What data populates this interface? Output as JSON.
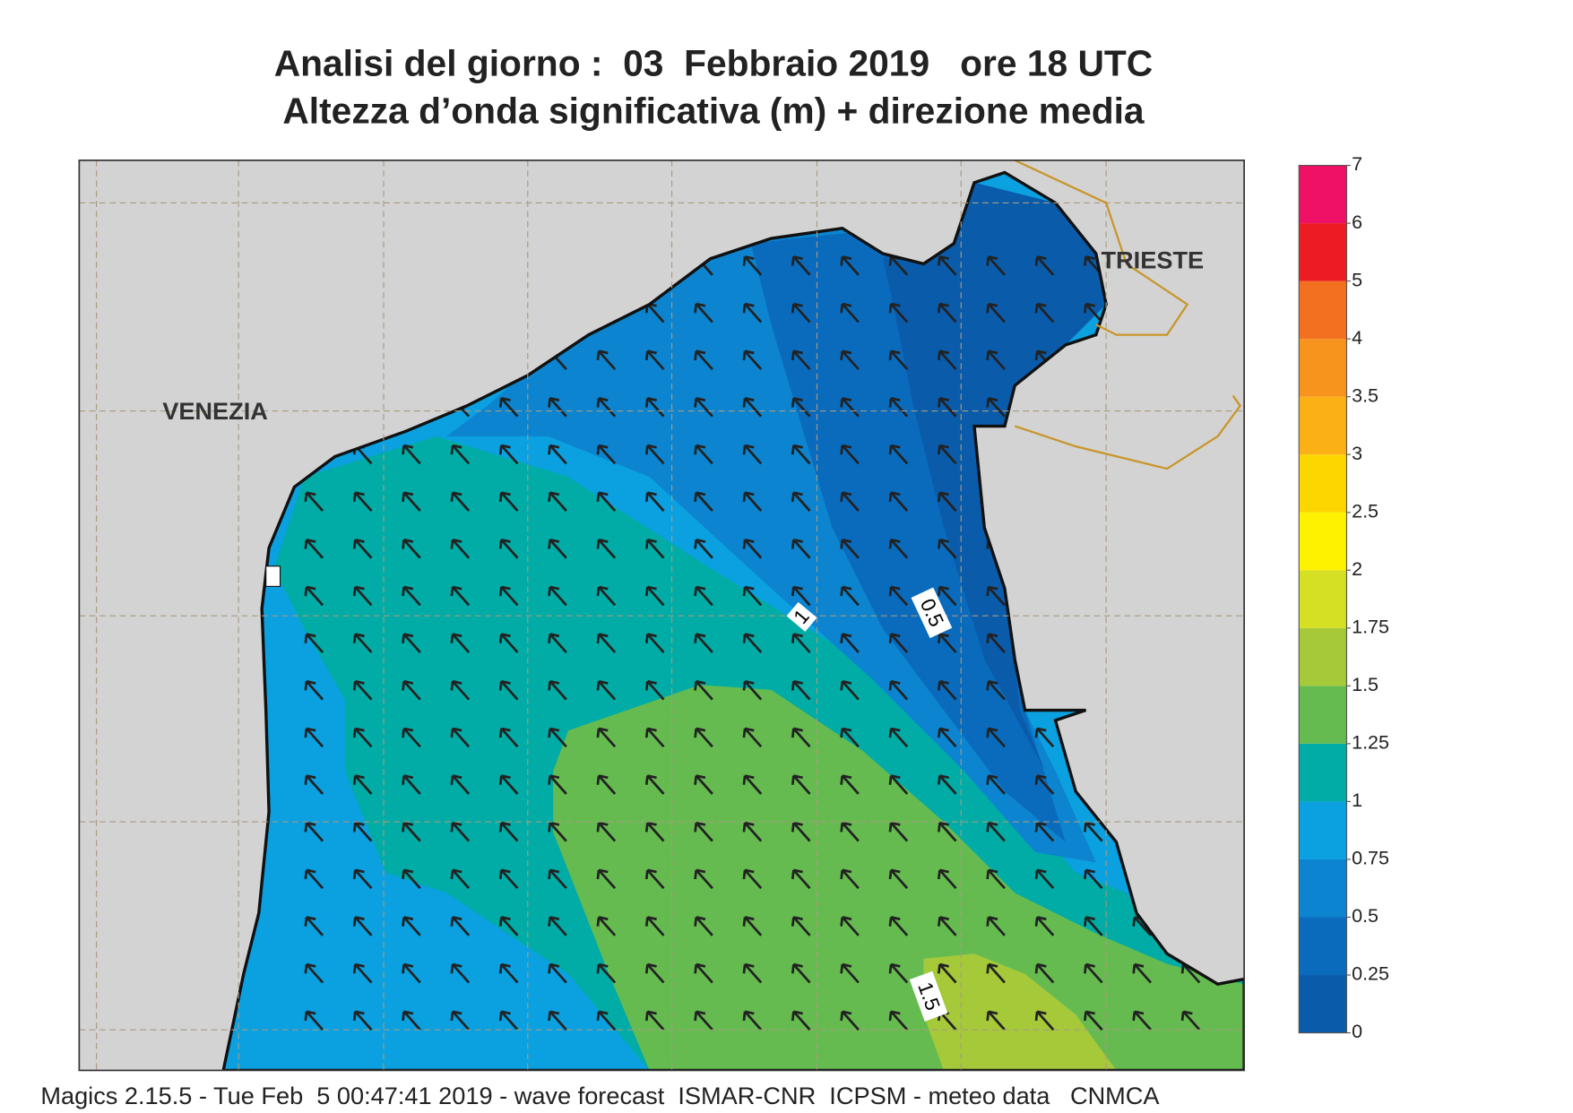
{
  "title": [
    "Analisi del giorno :  03  Febbraio 2019   ore 18 UTC",
    "Altezza d’onda significativa (m) + direzione media"
  ],
  "map": {
    "places": [
      "VENEZIA",
      "TRIESTE"
    ],
    "contour_labels": [
      "0.5",
      "1",
      "1.5"
    ]
  },
  "colorbar": {
    "ticks": [
      0,
      0.25,
      0.5,
      0.75,
      1,
      1.25,
      1.5,
      1.75,
      2,
      2.5,
      3,
      3.5,
      4,
      5,
      6,
      7
    ],
    "colors": [
      "#0a5cab",
      "#0a6bbd",
      "#0c84cf",
      "#0ba0e0",
      "#00aca5",
      "#66bb50",
      "#a6c93a",
      "#d5df24",
      "#fff200",
      "#fdd600",
      "#fbb116",
      "#f7941d",
      "#f37021",
      "#ec1c24",
      "#ee1165"
    ]
  },
  "footer": "Magics 2.15.5 - Tue Feb  5 00:47:41 2019 - wave forecast  ISMAR-CNR  ICPSM - meteo data   CNMCA"
}
